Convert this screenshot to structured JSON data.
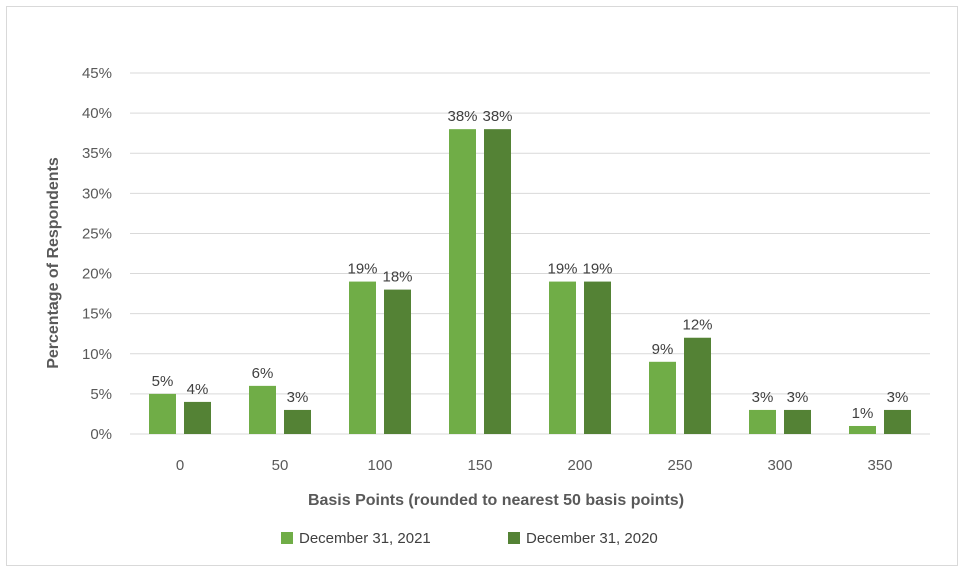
{
  "chart_data": {
    "type": "bar",
    "title": "",
    "xlabel": "Basis Points (rounded to nearest 50 basis points)",
    "ylabel": "Percentage of Respondents",
    "categories": [
      "0",
      "50",
      "100",
      "150",
      "200",
      "250",
      "300",
      "350"
    ],
    "series": [
      {
        "name": "December 31, 2021",
        "color": "#70ad47",
        "values": [
          5,
          6,
          19,
          38,
          19,
          9,
          3,
          1
        ],
        "labels": [
          "5%",
          "6%",
          "19%",
          "38%",
          "19%",
          "9%",
          "3%",
          "1%"
        ]
      },
      {
        "name": "December 31, 2020",
        "color": "#548235",
        "values": [
          4,
          3,
          18,
          38,
          19,
          12,
          3,
          3
        ],
        "labels": [
          "4%",
          "3%",
          "18%",
          "38%",
          "19%",
          "12%",
          "3%",
          "3%"
        ]
      }
    ],
    "ylim": [
      0,
      45
    ],
    "yticks": [
      "0%",
      "5%",
      "10%",
      "15%",
      "20%",
      "25%",
      "30%",
      "35%",
      "40%",
      "45%"
    ],
    "grid": true,
    "legend_position": "bottom"
  }
}
